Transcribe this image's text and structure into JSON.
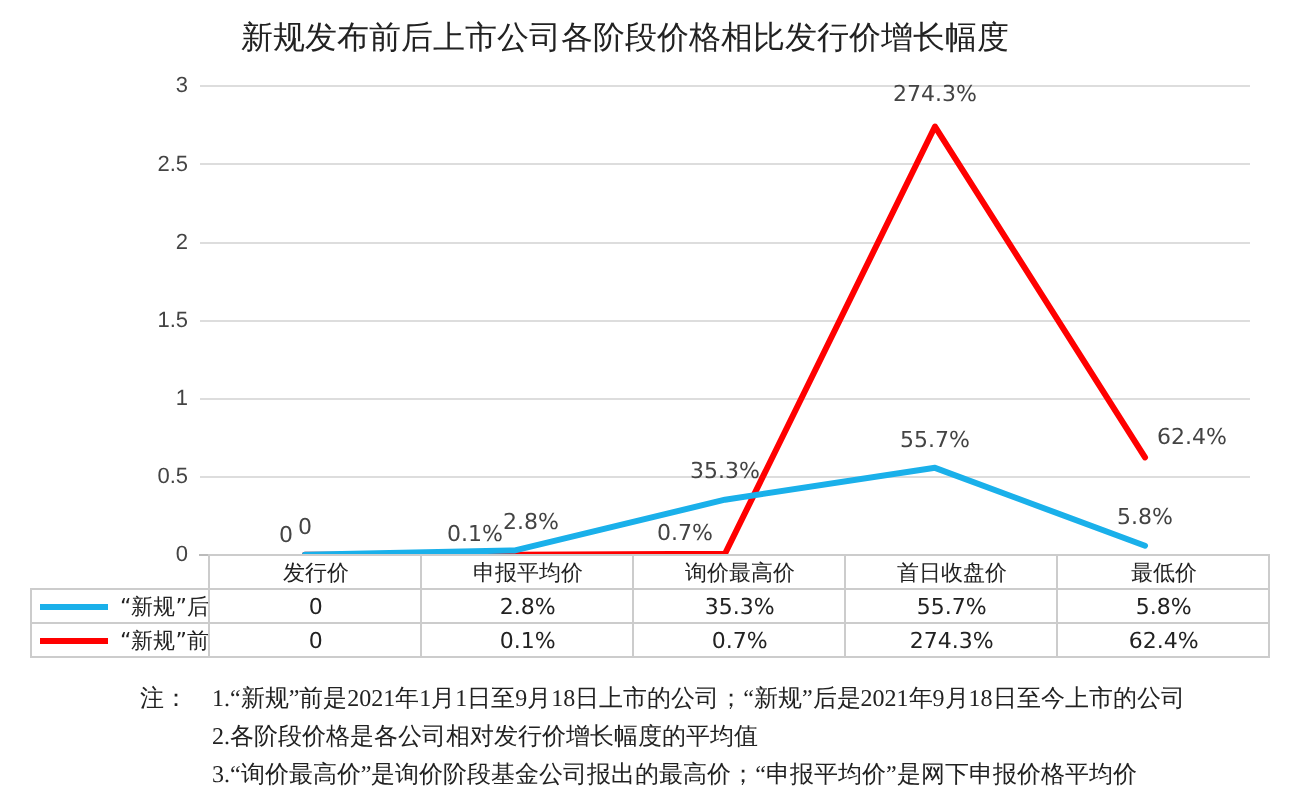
{
  "chart_data": {
    "type": "line",
    "title": "新规发布前后上市公司各阶段价格相比发行价增长幅度",
    "categories": [
      "发行价",
      "申报平均价",
      "询价最高价",
      "首日收盘价",
      "最低价"
    ],
    "series": [
      {
        "name": "“新规”后",
        "color": "#1ab0ea",
        "values": [
          0,
          0.028,
          0.353,
          0.557,
          0.058
        ],
        "value_labels": [
          "0",
          "2.8%",
          "35.3%",
          "55.7%",
          "5.8%"
        ]
      },
      {
        "name": "“新规”前",
        "color": "#ff0000",
        "values": [
          0,
          0.001,
          0.007,
          2.743,
          0.624
        ],
        "value_labels": [
          "0",
          "0.1%",
          "0.7%",
          "274.3%",
          "62.4%"
        ]
      }
    ],
    "ylim": [
      0,
      3
    ],
    "yticks": [
      0,
      0.5,
      1,
      1.5,
      2,
      2.5,
      3
    ],
    "grid": "y",
    "legend": "bottom",
    "marker": "none",
    "line_style": "solid",
    "annotations": [
      "注：",
      "1.“新规”前是2021年1月1日至9月18日上市的公司；“新规”后是2021年9月18日至今上市的公司",
      "2.各阶段价格是各公司相对发行价增长幅度的平均值",
      "3.“询价最高价”是询价阶段基金公司报出的最高价；“申报平均价”是网下申报价格平均价"
    ]
  }
}
